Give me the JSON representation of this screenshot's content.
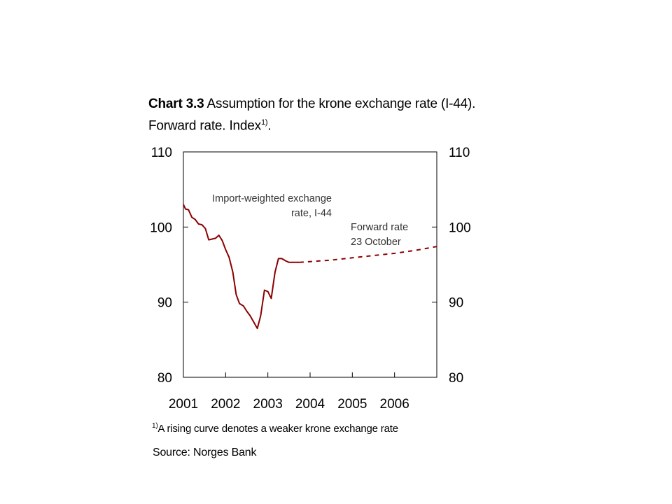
{
  "title": {
    "prefix": "Chart 3.3",
    "text": " Assumption for the krone exchange rate (I-44). Forward rate. Index",
    "superscript": "1)",
    "suffix": "."
  },
  "footnote": {
    "marker": "1)",
    "text": "A rising curve denotes a weaker krone exchange rate"
  },
  "source": "Source: Norges Bank",
  "colors": {
    "series": "#8b0000",
    "axis": "#000000"
  },
  "chart_data": {
    "type": "line",
    "ylim": [
      80,
      110
    ],
    "xlim": [
      2001,
      2007
    ],
    "y_ticks": [
      80,
      90,
      100,
      110
    ],
    "y_tick_labels": [
      "80",
      "90",
      "100",
      "110"
    ],
    "x_tick_labels": [
      "2001",
      "2002",
      "2003",
      "2004",
      "2005",
      "2006"
    ],
    "x_tick_values": [
      2001,
      2002,
      2003,
      2004,
      2005,
      2006
    ],
    "grid": false,
    "annotations": [
      {
        "lines": [
          "Import-weighted exchange",
          "rate, I-44"
        ],
        "align": "right"
      },
      {
        "lines": [
          "Forward rate",
          "23 October"
        ],
        "align": "left"
      }
    ],
    "series": [
      {
        "style": "solid",
        "x": [
          2001.0,
          2001.05,
          2001.12,
          2001.2,
          2001.28,
          2001.36,
          2001.44,
          2001.52,
          2001.6,
          2001.68,
          2001.76,
          2001.84,
          2001.92,
          2002.0,
          2002.08,
          2002.17,
          2002.25,
          2002.33,
          2002.42,
          2002.5,
          2002.58,
          2002.67,
          2002.75,
          2002.83,
          2002.92,
          2003.0,
          2003.08,
          2003.17,
          2003.25,
          2003.33,
          2003.42,
          2003.5,
          2003.58,
          2003.67,
          2003.75
        ],
        "values": [
          103.0,
          102.4,
          102.3,
          101.3,
          101.0,
          100.4,
          100.3,
          99.8,
          98.3,
          98.4,
          98.5,
          98.9,
          98.2,
          97.0,
          96.0,
          94.0,
          91.0,
          89.8,
          89.5,
          88.8,
          88.2,
          87.3,
          86.5,
          88.2,
          91.6,
          91.4,
          90.5,
          94.0,
          95.8,
          95.8,
          95.5,
          95.3,
          95.3,
          95.3,
          95.3
        ]
      },
      {
        "style": "dashed",
        "x": [
          2003.75,
          2004.0,
          2004.5,
          2005.0,
          2005.5,
          2006.0,
          2006.5,
          2007.0
        ],
        "values": [
          95.3,
          95.4,
          95.6,
          95.9,
          96.2,
          96.5,
          96.9,
          97.4
        ]
      }
    ]
  }
}
